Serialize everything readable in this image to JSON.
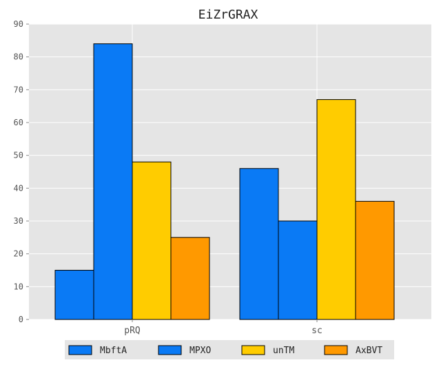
{
  "chart_data": {
    "type": "bar",
    "title": "EiZrGRAX",
    "xlabel": "",
    "ylabel": "",
    "categories": [
      "pRQ",
      "sc"
    ],
    "series": [
      {
        "name": "MbftA",
        "values": [
          15,
          46
        ],
        "color": "#0a7af5"
      },
      {
        "name": "MPXO",
        "values": [
          84,
          30
        ],
        "color": "#0a7af5"
      },
      {
        "name": "unTM",
        "values": [
          48,
          67
        ],
        "color": "#ffcc00"
      },
      {
        "name": "AxBVT",
        "values": [
          25,
          36
        ],
        "color": "#ff9900"
      }
    ],
    "ylim": [
      0,
      90
    ],
    "yticks": [
      0,
      10,
      20,
      30,
      40,
      50,
      60,
      70,
      80,
      90
    ],
    "grid": true,
    "legend_position": "bottom-center",
    "background_color": "#e5e5e5",
    "grid_color": "#ffffff"
  }
}
